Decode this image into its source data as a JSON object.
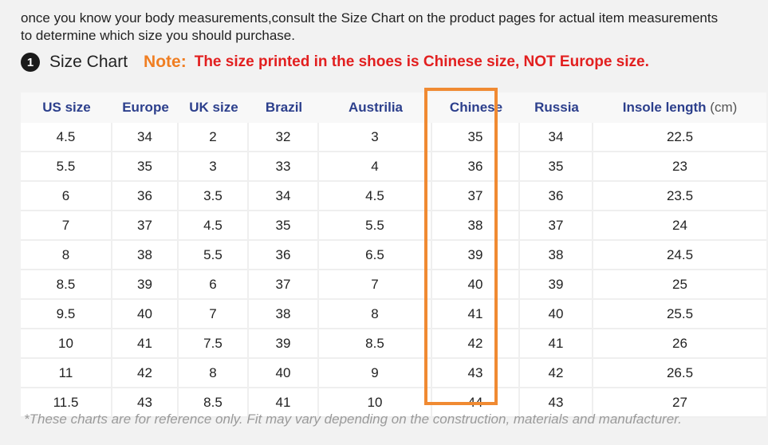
{
  "intro": {
    "line1": "once you know your body measurements,consult the Size Chart on the product pages for actual item measurements",
    "line2": "to determine which size you should purchase."
  },
  "heading": {
    "badge": "1",
    "title": "Size Chart",
    "note_label": "Note:",
    "note_text": "The size printed in the shoes is Chinese size, NOT Europe size."
  },
  "colors": {
    "header_text": "#2c3f8c",
    "note_label": "#f07e22",
    "note_text": "#e21f1f",
    "highlight": "#f08a32"
  },
  "table": {
    "headers": [
      "US size",
      "Europe",
      "UK size",
      "Brazil",
      "Austrilia",
      "Chinese",
      "Russia",
      "Insole length"
    ],
    "unit": "(cm)",
    "rows": [
      [
        "4.5",
        "34",
        "2",
        "32",
        "3",
        "35",
        "34",
        "22.5"
      ],
      [
        "5.5",
        "35",
        "3",
        "33",
        "4",
        "36",
        "35",
        "23"
      ],
      [
        "6",
        "36",
        "3.5",
        "34",
        "4.5",
        "37",
        "36",
        "23.5"
      ],
      [
        "7",
        "37",
        "4.5",
        "35",
        "5.5",
        "38",
        "37",
        "24"
      ],
      [
        "8",
        "38",
        "5.5",
        "36",
        "6.5",
        "39",
        "38",
        "24.5"
      ],
      [
        "8.5",
        "39",
        "6",
        "37",
        "7",
        "40",
        "39",
        "25"
      ],
      [
        "9.5",
        "40",
        "7",
        "38",
        "8",
        "41",
        "40",
        "25.5"
      ],
      [
        "10",
        "41",
        "7.5",
        "39",
        "8.5",
        "42",
        "41",
        "26"
      ],
      [
        "11",
        "42",
        "8",
        "40",
        "9",
        "43",
        "42",
        "26.5"
      ],
      [
        "11.5",
        "43",
        "8.5",
        "41",
        "10",
        "44",
        "43",
        "27"
      ]
    ]
  },
  "footnote": "*These charts are for reference only. Fit may vary depending on the construction, materials and manufacturer."
}
